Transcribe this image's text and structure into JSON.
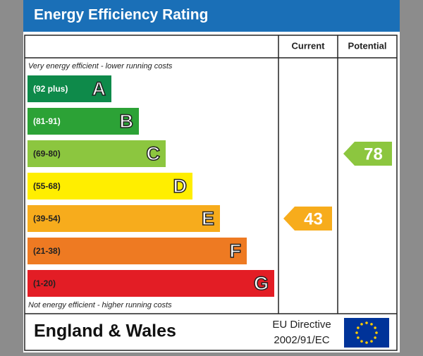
{
  "title": "Energy Efficiency Rating",
  "columns": {
    "current": "Current",
    "potential": "Potential"
  },
  "top_note": "Very energy efficient - lower running costs",
  "bottom_note": "Not energy efficient - higher running costs",
  "bands": [
    {
      "range": "(92 plus)",
      "letter": "A",
      "color": "#0e8a4a"
    },
    {
      "range": "(81-91)",
      "letter": "B",
      "color": "#2ca236"
    },
    {
      "range": "(69-80)",
      "letter": "C",
      "color": "#8cc63f"
    },
    {
      "range": "(55-68)",
      "letter": "D",
      "color": "#ffee00"
    },
    {
      "range": "(39-54)",
      "letter": "E",
      "color": "#f7ac1c"
    },
    {
      "range": "(21-38)",
      "letter": "F",
      "color": "#ee7a22"
    },
    {
      "range": "(1-20)",
      "letter": "G",
      "color": "#e31d25"
    }
  ],
  "current": 43,
  "potential": 78,
  "footer": {
    "region": "England & Wales",
    "directive_line1": "EU Directive",
    "directive_line2": "2002/91/EC"
  }
}
